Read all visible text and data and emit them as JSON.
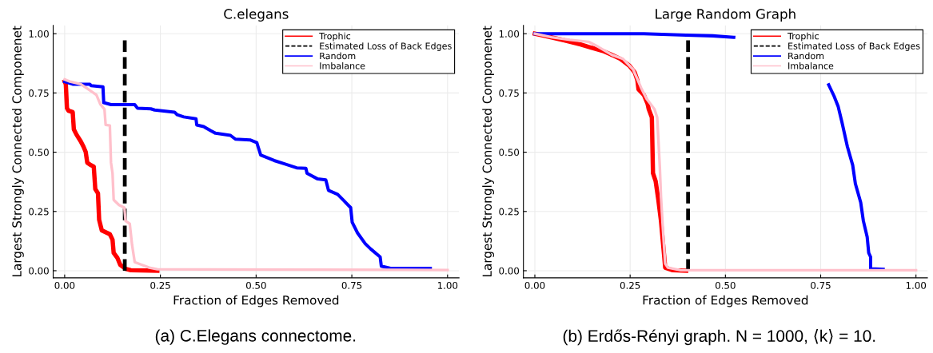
{
  "chart_data": [
    {
      "type": "line",
      "title": "C.elegans",
      "xlabel": "Fraction of Edges Removed",
      "ylabel": "Largest Strongly Connected Componenet",
      "xlim": [
        -0.03,
        1.03
      ],
      "ylim": [
        -0.03,
        1.035
      ],
      "xticks": [
        {
          "value": 0,
          "label": "0.00"
        },
        {
          "value": 0.25,
          "label": "0.25"
        },
        {
          "value": 0.5,
          "label": "0.50"
        },
        {
          "value": 0.75,
          "label": "0.75"
        },
        {
          "value": 1,
          "label": "1.00"
        }
      ],
      "yticks": [
        {
          "value": 0,
          "label": "0.00"
        },
        {
          "value": 0.25,
          "label": "0.25"
        },
        {
          "value": 0.5,
          "label": "0.50"
        },
        {
          "value": 0.75,
          "label": "0.75"
        },
        {
          "value": 1,
          "label": "1.00"
        }
      ],
      "grid": true,
      "legend": "top right",
      "marker": "none",
      "annotations": [
        "(a) C.Elegans connectome."
      ],
      "series": [
        {
          "name": "Trophic",
          "color": "#ff0000",
          "x": [
            0,
            0.003,
            0.006,
            0.01,
            0.021,
            0.024,
            0.031,
            0.042,
            0.049,
            0.055,
            0.059,
            0.069,
            0.076,
            0.08,
            0.087,
            0.09,
            0.097,
            0.118,
            0.125,
            0.128,
            0.138,
            0.145,
            0.159,
            0.173,
            0.242
          ],
          "values": [
            0.798,
            0.787,
            0.686,
            0.675,
            0.669,
            0.596,
            0.574,
            0.546,
            0.524,
            0.501,
            0.456,
            0.445,
            0.439,
            0.344,
            0.327,
            0.215,
            0.17,
            0.154,
            0.131,
            0.075,
            0.053,
            0.025,
            0.008,
            0.002,
            0.0
          ]
        },
        {
          "name": "Estimated Loss of Back Edges",
          "color": "#000000",
          "line_style": "dashed",
          "x": [
            0.157,
            0.157
          ],
          "values": [
            0,
            0.972
          ]
        },
        {
          "name": "Random",
          "color": "#0000ff",
          "x": [
            0,
            0.021,
            0.066,
            0.069,
            0.1,
            0.102,
            0.121,
            0.183,
            0.19,
            0.225,
            0.235,
            0.287,
            0.294,
            0.311,
            0.343,
            0.345,
            0.363,
            0.381,
            0.394,
            0.433,
            0.446,
            0.484,
            0.502,
            0.505,
            0.512,
            0.547,
            0.574,
            0.606,
            0.63,
            0.633,
            0.661,
            0.682,
            0.689,
            0.713,
            0.73,
            0.747,
            0.751,
            0.765,
            0.785,
            0.799,
            0.824,
            0.827,
            0.851,
            0.955
          ],
          "values": [
            0.798,
            0.787,
            0.787,
            0.781,
            0.776,
            0.709,
            0.701,
            0.701,
            0.686,
            0.683,
            0.678,
            0.669,
            0.658,
            0.649,
            0.641,
            0.615,
            0.608,
            0.591,
            0.58,
            0.571,
            0.555,
            0.552,
            0.54,
            0.524,
            0.488,
            0.465,
            0.451,
            0.434,
            0.432,
            0.411,
            0.387,
            0.383,
            0.339,
            0.322,
            0.294,
            0.266,
            0.204,
            0.159,
            0.114,
            0.092,
            0.058,
            0.019,
            0.01,
            0.01
          ]
        },
        {
          "name": "Imbalance",
          "color": "#ffc0cb",
          "x": [
            0,
            0.014,
            0.042,
            0.062,
            0.083,
            0.093,
            0.104,
            0.107,
            0.118,
            0.121,
            0.125,
            0.128,
            0.142,
            0.156,
            0.159,
            0.17,
            0.176,
            0.183,
            0.201,
            0.221,
            0.242,
            1.0
          ],
          "values": [
            0.807,
            0.798,
            0.787,
            0.765,
            0.742,
            0.703,
            0.681,
            0.615,
            0.613,
            0.456,
            0.411,
            0.299,
            0.277,
            0.266,
            0.21,
            0.198,
            0.109,
            0.036,
            0.025,
            0.013,
            0.006,
            0.003
          ]
        }
      ]
    },
    {
      "type": "line",
      "title": "Large Random Graph",
      "xlabel": "Fraction of Edges Removed",
      "ylabel": "Largest Strongly Connected Componenet",
      "xlim": [
        -0.03,
        1.03
      ],
      "ylim": [
        -0.03,
        1.035
      ],
      "xticks": [
        {
          "value": 0,
          "label": "0.00"
        },
        {
          "value": 0.25,
          "label": "0.25"
        },
        {
          "value": 0.5,
          "label": "0.50"
        },
        {
          "value": 0.75,
          "label": "0.75"
        },
        {
          "value": 1,
          "label": "1.00"
        }
      ],
      "yticks": [
        {
          "value": 0,
          "label": "0.00"
        },
        {
          "value": 0.25,
          "label": "0.25"
        },
        {
          "value": 0.5,
          "label": "0.50"
        },
        {
          "value": 0.75,
          "label": "0.75"
        },
        {
          "value": 1,
          "label": "1.00"
        }
      ],
      "grid": true,
      "legend": "top right",
      "marker": "none",
      "annotations": [
        "(b) Erdős-Rényi graph. N = 1000, ⟨k⟩ = 10."
      ],
      "series": [
        {
          "name": "Trophic",
          "color": "#ff0000",
          "x": [
            0,
            0.03,
            0.078,
            0.12,
            0.148,
            0.179,
            0.203,
            0.224,
            0.248,
            0.262,
            0.269,
            0.272,
            0.286,
            0.296,
            0.299,
            0.307,
            0.31,
            0.317,
            0.324,
            0.331,
            0.338,
            0.342,
            0.362,
            0.397
          ],
          "values": [
            1.0,
            0.989,
            0.972,
            0.955,
            0.941,
            0.927,
            0.91,
            0.894,
            0.865,
            0.837,
            0.804,
            0.765,
            0.742,
            0.703,
            0.681,
            0.647,
            0.411,
            0.378,
            0.299,
            0.21,
            0.086,
            0.013,
            0.002,
            0.0
          ]
        },
        {
          "name": "Estimated Loss of Back Edges",
          "color": "#000000",
          "line_style": "dashed",
          "x": [
            0.402,
            0.402
          ],
          "values": [
            0,
            0.972
          ]
        },
        {
          "name": "Random",
          "color": "#0000ff",
          "x": [
            0,
            0.286,
            0.397,
            0.466,
            0.522,
            0.65,
            0.771,
            0.785,
            0.796,
            0.806,
            0.82,
            0.834,
            0.841,
            0.855,
            0.862,
            0.872,
            0.876,
            0.881,
            0.881,
            0.914
          ],
          "values": [
            1.0,
            1.0,
            0.994,
            0.991,
            0.985,
            null,
            0.784,
            0.737,
            0.692,
            0.625,
            0.524,
            0.445,
            0.367,
            0.288,
            0.21,
            0.142,
            0.075,
            0.058,
            0.008,
            0.006
          ]
        },
        {
          "name": "Imbalance",
          "color": "#ffc0cb",
          "x": [
            0,
            0.044,
            0.092,
            0.141,
            0.167,
            0.203,
            0.231,
            0.258,
            0.279,
            0.293,
            0.314,
            0.321,
            0.324,
            0.328,
            0.331,
            0.336,
            0.342,
            0.349,
            0.383,
            1.0
          ],
          "values": [
            1.0,
            0.985,
            0.974,
            0.966,
            0.944,
            0.91,
            0.894,
            0.849,
            0.771,
            0.726,
            0.681,
            0.647,
            0.557,
            0.434,
            0.311,
            0.176,
            0.03,
            0.013,
            0.002,
            0.002
          ]
        }
      ]
    }
  ]
}
